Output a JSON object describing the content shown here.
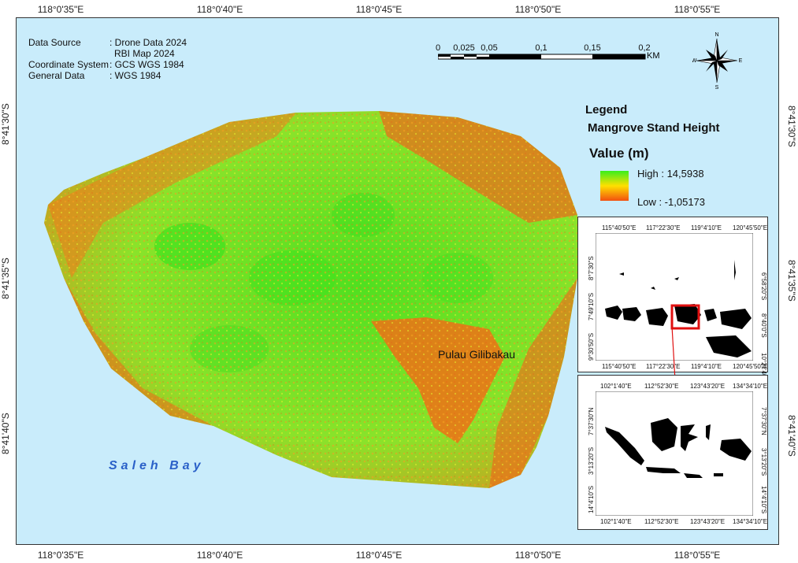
{
  "graticule": {
    "top_labels": [
      "118°0'35\"E",
      "118°0'40\"E",
      "118°0'45\"E",
      "118°0'50\"E",
      "118°0'55\"E"
    ],
    "bottom_labels": [
      "118°0'35\"E",
      "118°0'40\"E",
      "118°0'45\"E",
      "118°0'50\"E",
      "118°0'55\"E"
    ],
    "left_labels": [
      "8°41'30\"S",
      "8°41'35\"S",
      "8°41'40\"S"
    ],
    "right_labels": [
      "8°41'30\"S",
      "8°41'35\"S",
      "8°41'40\"S"
    ]
  },
  "metadata": {
    "data_source_key": "Data Source",
    "data_source_value_1": ": Drone Data 2024",
    "data_source_value_2": "RBI Map 2024",
    "coordinate_system_key": "Coordinate System",
    "coordinate_system_value": ": GCS WGS 1984",
    "general_data_key": "General Data",
    "general_data_value": ": WGS 1984"
  },
  "scalebar": {
    "ticks": [
      "0",
      "0,025",
      "0,05",
      "0,1",
      "0,15",
      "0,2"
    ],
    "unit": "KM"
  },
  "north_arrow": {
    "n": "N",
    "s": "S",
    "e": "E",
    "w": "W"
  },
  "legend": {
    "title": "Legend",
    "subtitle": "Mangrove Stand Height",
    "value_label": "Value (m)",
    "high": "High : 14,5938",
    "low": "Low : -1,05173",
    "colors": {
      "high": "#39ef1d",
      "mid": "#ffe000",
      "low": "#f25010"
    }
  },
  "map_labels": {
    "island": "Pulau Gilibakau",
    "bay": "Saleh Bay",
    "bay_color": "#2a60c8",
    "water_color": "#c9ecfb"
  },
  "inset1": {
    "top_labels": [
      "115°40'50\"E",
      "117°22'30\"E",
      "119°4'10\"E",
      "120°45'50\"E"
    ],
    "bottom_labels": [
      "115°40'50\"E",
      "117°22'30\"E",
      "119°4'10\"E",
      "120°45'50\"E"
    ],
    "left_labels": [
      "8°7'30\"S",
      "7°49'10\"S",
      "9°30'50\"S"
    ],
    "right_labels": [
      "6°58'20\"S",
      "8°40'0\"S",
      "10°21'40\"S"
    ]
  },
  "inset2": {
    "top_labels": [
      "102°1'40\"E",
      "112°52'30\"E",
      "123°43'20\"E",
      "134°34'10\"E"
    ],
    "bottom_labels": [
      "102°1'40\"E",
      "112°52'30\"E",
      "123°43'20\"E",
      "134°34'10\"E"
    ],
    "left_labels": [
      "7°37'30\"N",
      "3°13'20\"S",
      "14°4'10\"S"
    ],
    "right_labels": [
      "7°37'30\"N",
      "3°13'20\"S",
      "14°4'10\"S"
    ]
  }
}
